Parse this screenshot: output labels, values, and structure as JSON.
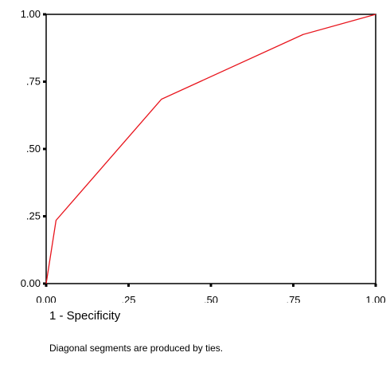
{
  "chart_data": {
    "type": "line",
    "title": "",
    "xlabel": "1 - Specificity",
    "ylabel": "",
    "xlim": [
      0,
      1
    ],
    "ylim": [
      0,
      1
    ],
    "x_ticks": [
      0,
      0.25,
      0.5,
      0.75,
      1
    ],
    "x_tick_labels": [
      "0.00",
      ".25",
      ".50",
      ".75",
      "1.00"
    ],
    "y_ticks": [
      0,
      0.25,
      0.5,
      0.75,
      1
    ],
    "y_tick_labels": [
      "0.00",
      ".25",
      ".50",
      ".75",
      "1.00"
    ],
    "grid": false,
    "series": [
      {
        "color": "#e8141c",
        "points": [
          {
            "x": 0.0,
            "y": 0.0
          },
          {
            "x": 0.03,
            "y": 0.235
          },
          {
            "x": 0.35,
            "y": 0.685
          },
          {
            "x": 0.78,
            "y": 0.925
          },
          {
            "x": 1.0,
            "y": 1.0
          }
        ]
      }
    ],
    "footnote": "Diagonal segments are produced by ties."
  }
}
